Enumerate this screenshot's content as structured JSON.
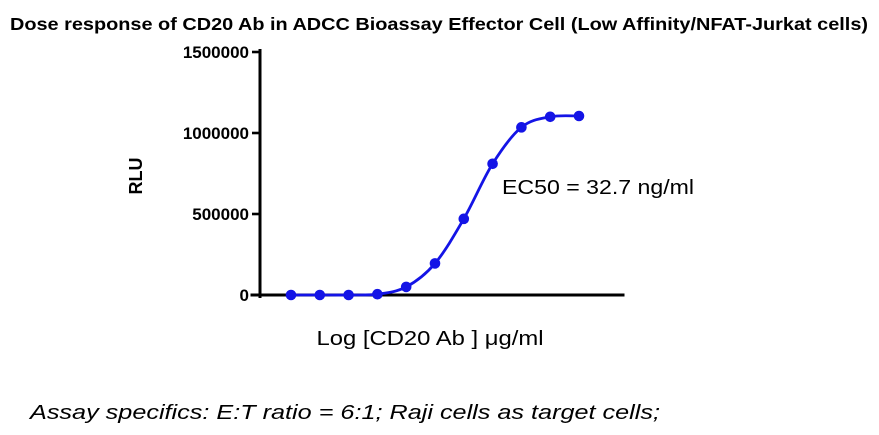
{
  "title": "Dose response of CD20 Ab in ADCC Bioassay Effector Cell (Low Affinity/NFAT-Jurkat cells)",
  "footnote": "Assay specifics: E:T ratio = 6:1; Raji cells as target cells;",
  "colors": {
    "curve": "#1414e6",
    "axis": "#000000",
    "text": "#000000",
    "background": "#ffffff"
  },
  "chart_data": {
    "type": "line",
    "title": "Dose response of CD20 Ab in ADCC Bioassay Effector Cell (Low Affinity/NFAT-Jurkat cells)",
    "xlabel": "Log [CD20 Ab ] μg/ml",
    "ylabel": "RLU",
    "ylim": [
      0,
      1500000
    ],
    "yticks": [
      0,
      500000,
      1000000,
      1500000
    ],
    "ytick_labels": [
      "0",
      "500000",
      "1000000",
      "1500000"
    ],
    "x_tick_labels_visible": false,
    "grid": false,
    "legend": "none",
    "annotation": "EC50 = 32.7 ng/ml",
    "series": [
      {
        "name": "CD20 Ab dose response",
        "color": "#1414e6",
        "marker": "circle",
        "x_index": [
          1,
          2,
          3,
          4,
          5,
          6,
          7,
          8,
          9,
          10,
          11
        ],
        "values": [
          0,
          0,
          0,
          5000,
          50000,
          195000,
          470000,
          810000,
          1035000,
          1100000,
          1105000
        ]
      }
    ]
  }
}
